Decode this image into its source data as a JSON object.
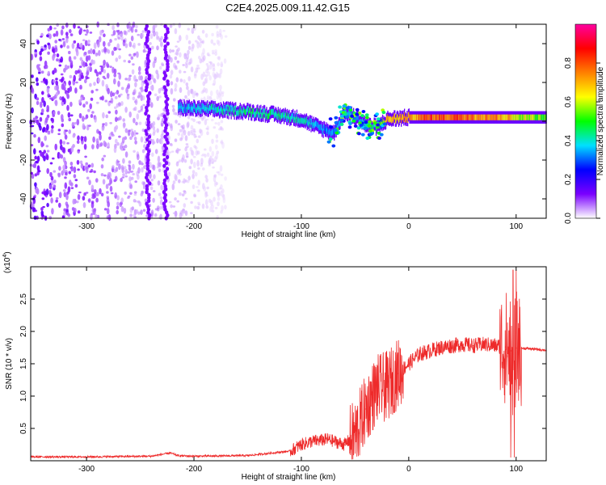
{
  "title": "C2E4.2025.009.11.42.G15",
  "chart_data": [
    {
      "type": "heatmap",
      "xlabel": "Height of straight line (km)",
      "ylabel": "Frequency (Hz)",
      "xlim": [
        -352,
        128
      ],
      "ylim": [
        -50,
        50
      ],
      "xticks": [
        -300,
        -200,
        -100,
        0,
        100
      ],
      "xtick_labels": [
        "-300",
        "-200",
        "-100",
        "0",
        "100"
      ],
      "yticks": [
        -40,
        -20,
        0,
        20,
        40
      ],
      "ytick_labels": [
        "-40",
        "-20",
        "0",
        "20",
        "40"
      ],
      "colorbar": {
        "label": "Normalized spectral amplitude",
        "range": [
          0,
          1
        ],
        "ticks": [
          0.0,
          0.2,
          0.4,
          0.6,
          0.8
        ],
        "tick_labels": [
          "0.0",
          "0.2",
          "0.4",
          "0.6",
          "0.8"
        ],
        "colormap": [
          "#ffffff",
          "#7a00ff",
          "#0000ff",
          "#00e0ff",
          "#00ff00",
          "#ffff00",
          "#ff8000",
          "#ff0000",
          "#ff00a0"
        ]
      },
      "ridge": {
        "x": [
          -215,
          -180,
          -150,
          -120,
          -100,
          -85,
          -70,
          -60,
          -50,
          -40,
          -30,
          -20,
          0,
          20,
          50,
          80,
          100,
          128
        ],
        "y": [
          7,
          6,
          5,
          3,
          1,
          -3,
          -6,
          5,
          2,
          -2,
          -3,
          1,
          2,
          2,
          2,
          2,
          2,
          2
        ],
        "amplitude": [
          0.4,
          0.45,
          0.5,
          0.5,
          0.45,
          0.4,
          0.35,
          0.45,
          0.4,
          0.45,
          0.5,
          0.75,
          0.8,
          0.9,
          0.9,
          0.85,
          0.7,
          0.6
        ]
      },
      "noise_region": [
        -352,
        -170
      ]
    },
    {
      "type": "line",
      "xlabel": "Height of straight line (km)",
      "ylabel": "SNR (10 * v/v)",
      "y_multiplier_label": "(x10",
      "y_multiplier_exp": "4",
      "y_multiplier_close": ")",
      "xlim": [
        -352,
        128
      ],
      "ylim": [
        0,
        3.0
      ],
      "xticks": [
        -300,
        -200,
        -100,
        0,
        100
      ],
      "xtick_labels": [
        "-300",
        "-200",
        "-100",
        "0",
        "100"
      ],
      "yticks": [
        0.5,
        1.0,
        1.5,
        2.0,
        2.5
      ],
      "ytick_labels": [
        "0.5",
        "1.0",
        "1.5",
        "2.0",
        "2.5"
      ],
      "color": "#ee2a2a",
      "series": [
        {
          "x": [
            -352,
            -300,
            -240,
            -222,
            -215,
            -200,
            -150,
            -110,
            -100,
            -90,
            -75,
            -60,
            -50,
            -40,
            -30,
            -20,
            -10,
            0,
            10,
            20,
            30,
            40,
            50,
            60,
            70,
            80,
            90,
            95,
            98,
            100,
            105,
            115,
            128
          ],
          "y": [
            0.06,
            0.06,
            0.07,
            0.12,
            0.08,
            0.07,
            0.08,
            0.15,
            0.25,
            0.3,
            0.33,
            0.25,
            0.4,
            0.8,
            1.1,
            1.15,
            1.35,
            1.5,
            1.65,
            1.7,
            1.75,
            1.78,
            1.8,
            1.78,
            1.8,
            1.78,
            1.76,
            1.7,
            1.5,
            1.74,
            1.74,
            1.73,
            1.71
          ]
        }
      ]
    }
  ]
}
